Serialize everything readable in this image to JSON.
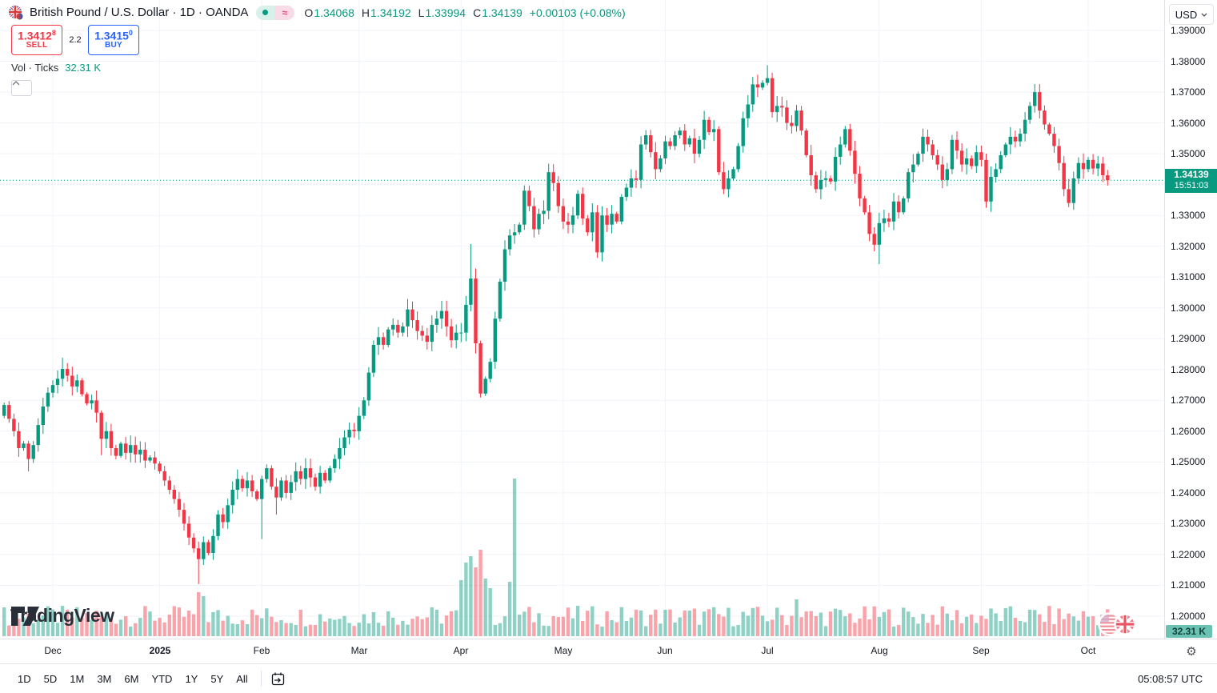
{
  "header": {
    "symbol_title": "British Pound / U.S. Dollar · 1D · OANDA",
    "market_status_icon": "market-open-dot",
    "delayed_badge": "≈",
    "ohlc": {
      "o_label": "O",
      "o": "1.34068",
      "h_label": "H",
      "h": "1.34192",
      "l_label": "L",
      "l": "1.33994",
      "c_label": "C",
      "c": "1.34139",
      "change": "+0.00103 (+0.08%)"
    },
    "sell_button": {
      "price": "1.3412",
      "sup": "8",
      "label": "SELL"
    },
    "spread": "2.2",
    "buy_button": {
      "price": "1.3415",
      "sup": "0",
      "label": "BUY"
    },
    "indicator_row": {
      "label": "Vol · Ticks",
      "value": "32.31 K"
    },
    "collapse_button": "chevron-up"
  },
  "watermark_text": "TradingView",
  "price_axis": {
    "currency_button": "USD",
    "ticks": [
      "1.39000",
      "1.38000",
      "1.37000",
      "1.36000",
      "1.35000",
      "1.34000",
      "1.33000",
      "1.32000",
      "1.31000",
      "1.30000",
      "1.29000",
      "1.28000",
      "1.27000",
      "1.26000",
      "1.25000",
      "1.24000",
      "1.23000",
      "1.22000",
      "1.21000",
      "1.20000"
    ],
    "last_price_label": {
      "price": "1.34139",
      "countdown": "15:51:03"
    },
    "volume_label": "32.31 K"
  },
  "time_axis": {
    "utc_clock": "05:08:57 UTC"
  },
  "toolbar": {
    "ranges": [
      "1D",
      "5D",
      "1M",
      "3M",
      "6M",
      "YTD",
      "1Y",
      "5Y",
      "All"
    ]
  },
  "chart_data": {
    "type": "candlestick+volume",
    "symbol": "GBP/USD",
    "timeframe": "1D",
    "venue": "OANDA",
    "price_axis_range": [
      1.2,
      1.39
    ],
    "current_price": 1.34139,
    "up_color": "#089981",
    "down_color": "#f23645",
    "grid": true,
    "opens_rule": "previous_close",
    "first_open": 1.265,
    "months": [
      {
        "label": "Dec",
        "day": 10
      },
      {
        "label": "2025",
        "day": 32,
        "year": true
      },
      {
        "label": "Feb",
        "day": 53
      },
      {
        "label": "Mar",
        "day": 73
      },
      {
        "label": "Apr",
        "day": 94
      },
      {
        "label": "May",
        "day": 115
      },
      {
        "label": "Jun",
        "day": 136
      },
      {
        "label": "Jul",
        "day": 157
      },
      {
        "label": "Aug",
        "day": 180
      },
      {
        "label": "Sep",
        "day": 201
      },
      {
        "label": "Oct",
        "day": 223
      }
    ],
    "closes": [
      1.2685,
      1.264,
      1.26,
      1.2545,
      1.256,
      1.251,
      1.2555,
      1.262,
      1.268,
      1.2725,
      1.275,
      1.277,
      1.2802,
      1.278,
      1.2745,
      1.2765,
      1.272,
      1.269,
      1.27,
      1.266,
      1.2575,
      1.26,
      1.2545,
      1.252,
      1.256,
      1.253,
      1.2555,
      1.2525,
      1.254,
      1.2505,
      1.2515,
      1.2495,
      1.247,
      1.244,
      1.241,
      1.238,
      1.2345,
      1.23,
      1.2255,
      1.222,
      1.2185,
      1.224,
      1.2205,
      1.226,
      1.233,
      1.2305,
      1.236,
      1.241,
      1.2445,
      1.2415,
      1.244,
      1.2405,
      1.238,
      1.2445,
      1.248,
      1.242,
      1.2385,
      1.244,
      1.24,
      1.2435,
      1.247,
      1.2445,
      1.248,
      1.245,
      1.242,
      1.2465,
      1.244,
      1.248,
      1.251,
      1.2545,
      1.258,
      1.2605,
      1.26,
      1.265,
      1.27,
      1.279,
      1.288,
      1.2905,
      1.288,
      1.293,
      1.2945,
      1.292,
      1.294,
      1.2995,
      1.296,
      1.2925,
      1.291,
      1.289,
      1.2945,
      1.2965,
      1.299,
      1.294,
      1.2895,
      1.292,
      1.292,
      1.301,
      1.3095,
      1.2885,
      1.2722,
      1.277,
      1.2825,
      1.2965,
      1.3085,
      1.319,
      1.3235,
      1.3245,
      1.327,
      1.338,
      1.333,
      1.3255,
      1.3305,
      1.3315,
      1.344,
      1.3405,
      1.333,
      1.328,
      1.327,
      1.33,
      1.337,
      1.329,
      1.3245,
      1.331,
      1.318,
      1.33,
      1.327,
      1.3305,
      1.328,
      1.336,
      1.339,
      1.342,
      1.3415,
      1.353,
      1.356,
      1.3505,
      1.345,
      1.3485,
      1.354,
      1.3525,
      1.356,
      1.3575,
      1.353,
      1.355,
      1.35,
      1.3545,
      1.361,
      1.357,
      1.358,
      1.344,
      1.3385,
      1.342,
      1.345,
      1.3525,
      1.3615,
      1.366,
      1.3725,
      1.3715,
      1.373,
      1.3745,
      1.3635,
      1.3655,
      1.365,
      1.36,
      1.359,
      1.364,
      1.3575,
      1.3495,
      1.343,
      1.3385,
      1.3415,
      1.342,
      1.341,
      1.349,
      1.353,
      1.358,
      1.351,
      1.3435,
      1.3355,
      1.331,
      1.324,
      1.3205,
      1.3275,
      1.329,
      1.328,
      1.3345,
      1.331,
      1.3355,
      1.344,
      1.3465,
      1.35,
      1.3555,
      1.353,
      1.3495,
      1.3465,
      1.3415,
      1.345,
      1.3545,
      1.351,
      1.3465,
      1.3485,
      1.346,
      1.3505,
      1.348,
      1.3345,
      1.3425,
      1.345,
      1.3495,
      1.353,
      1.3555,
      1.354,
      1.3565,
      1.361,
      1.3655,
      1.37,
      1.364,
      1.3595,
      1.3565,
      1.3525,
      1.347,
      1.3385,
      1.334,
      1.342,
      1.347,
      1.345,
      1.348,
      1.3452,
      1.3468,
      1.343,
      1.34139
    ],
    "wick_overrides": {
      "5": {
        "low": 1.247
      },
      "12": {
        "high": 1.2838
      },
      "20": {
        "low": 1.2522
      },
      "40": {
        "low": 1.2104
      },
      "53": {
        "low": 1.225
      },
      "56": {
        "low": 1.2329
      },
      "96": {
        "high": 1.3207
      },
      "98": {
        "low": 1.2709
      },
      "122": {
        "low": 1.3162
      },
      "148": {
        "low": 1.3369
      },
      "157": {
        "high": 1.3787
      },
      "180": {
        "low": 1.3142
      },
      "212": {
        "high": 1.3726
      },
      "219": {
        "low": 1.3327
      }
    },
    "volume_overrides": {
      "40": 55,
      "41": 50,
      "94": 70,
      "95": 92,
      "96": 100,
      "97": 86,
      "98": 108,
      "99": 72,
      "100": 60,
      "104": 68,
      "105": 197,
      "163": 46
    }
  }
}
